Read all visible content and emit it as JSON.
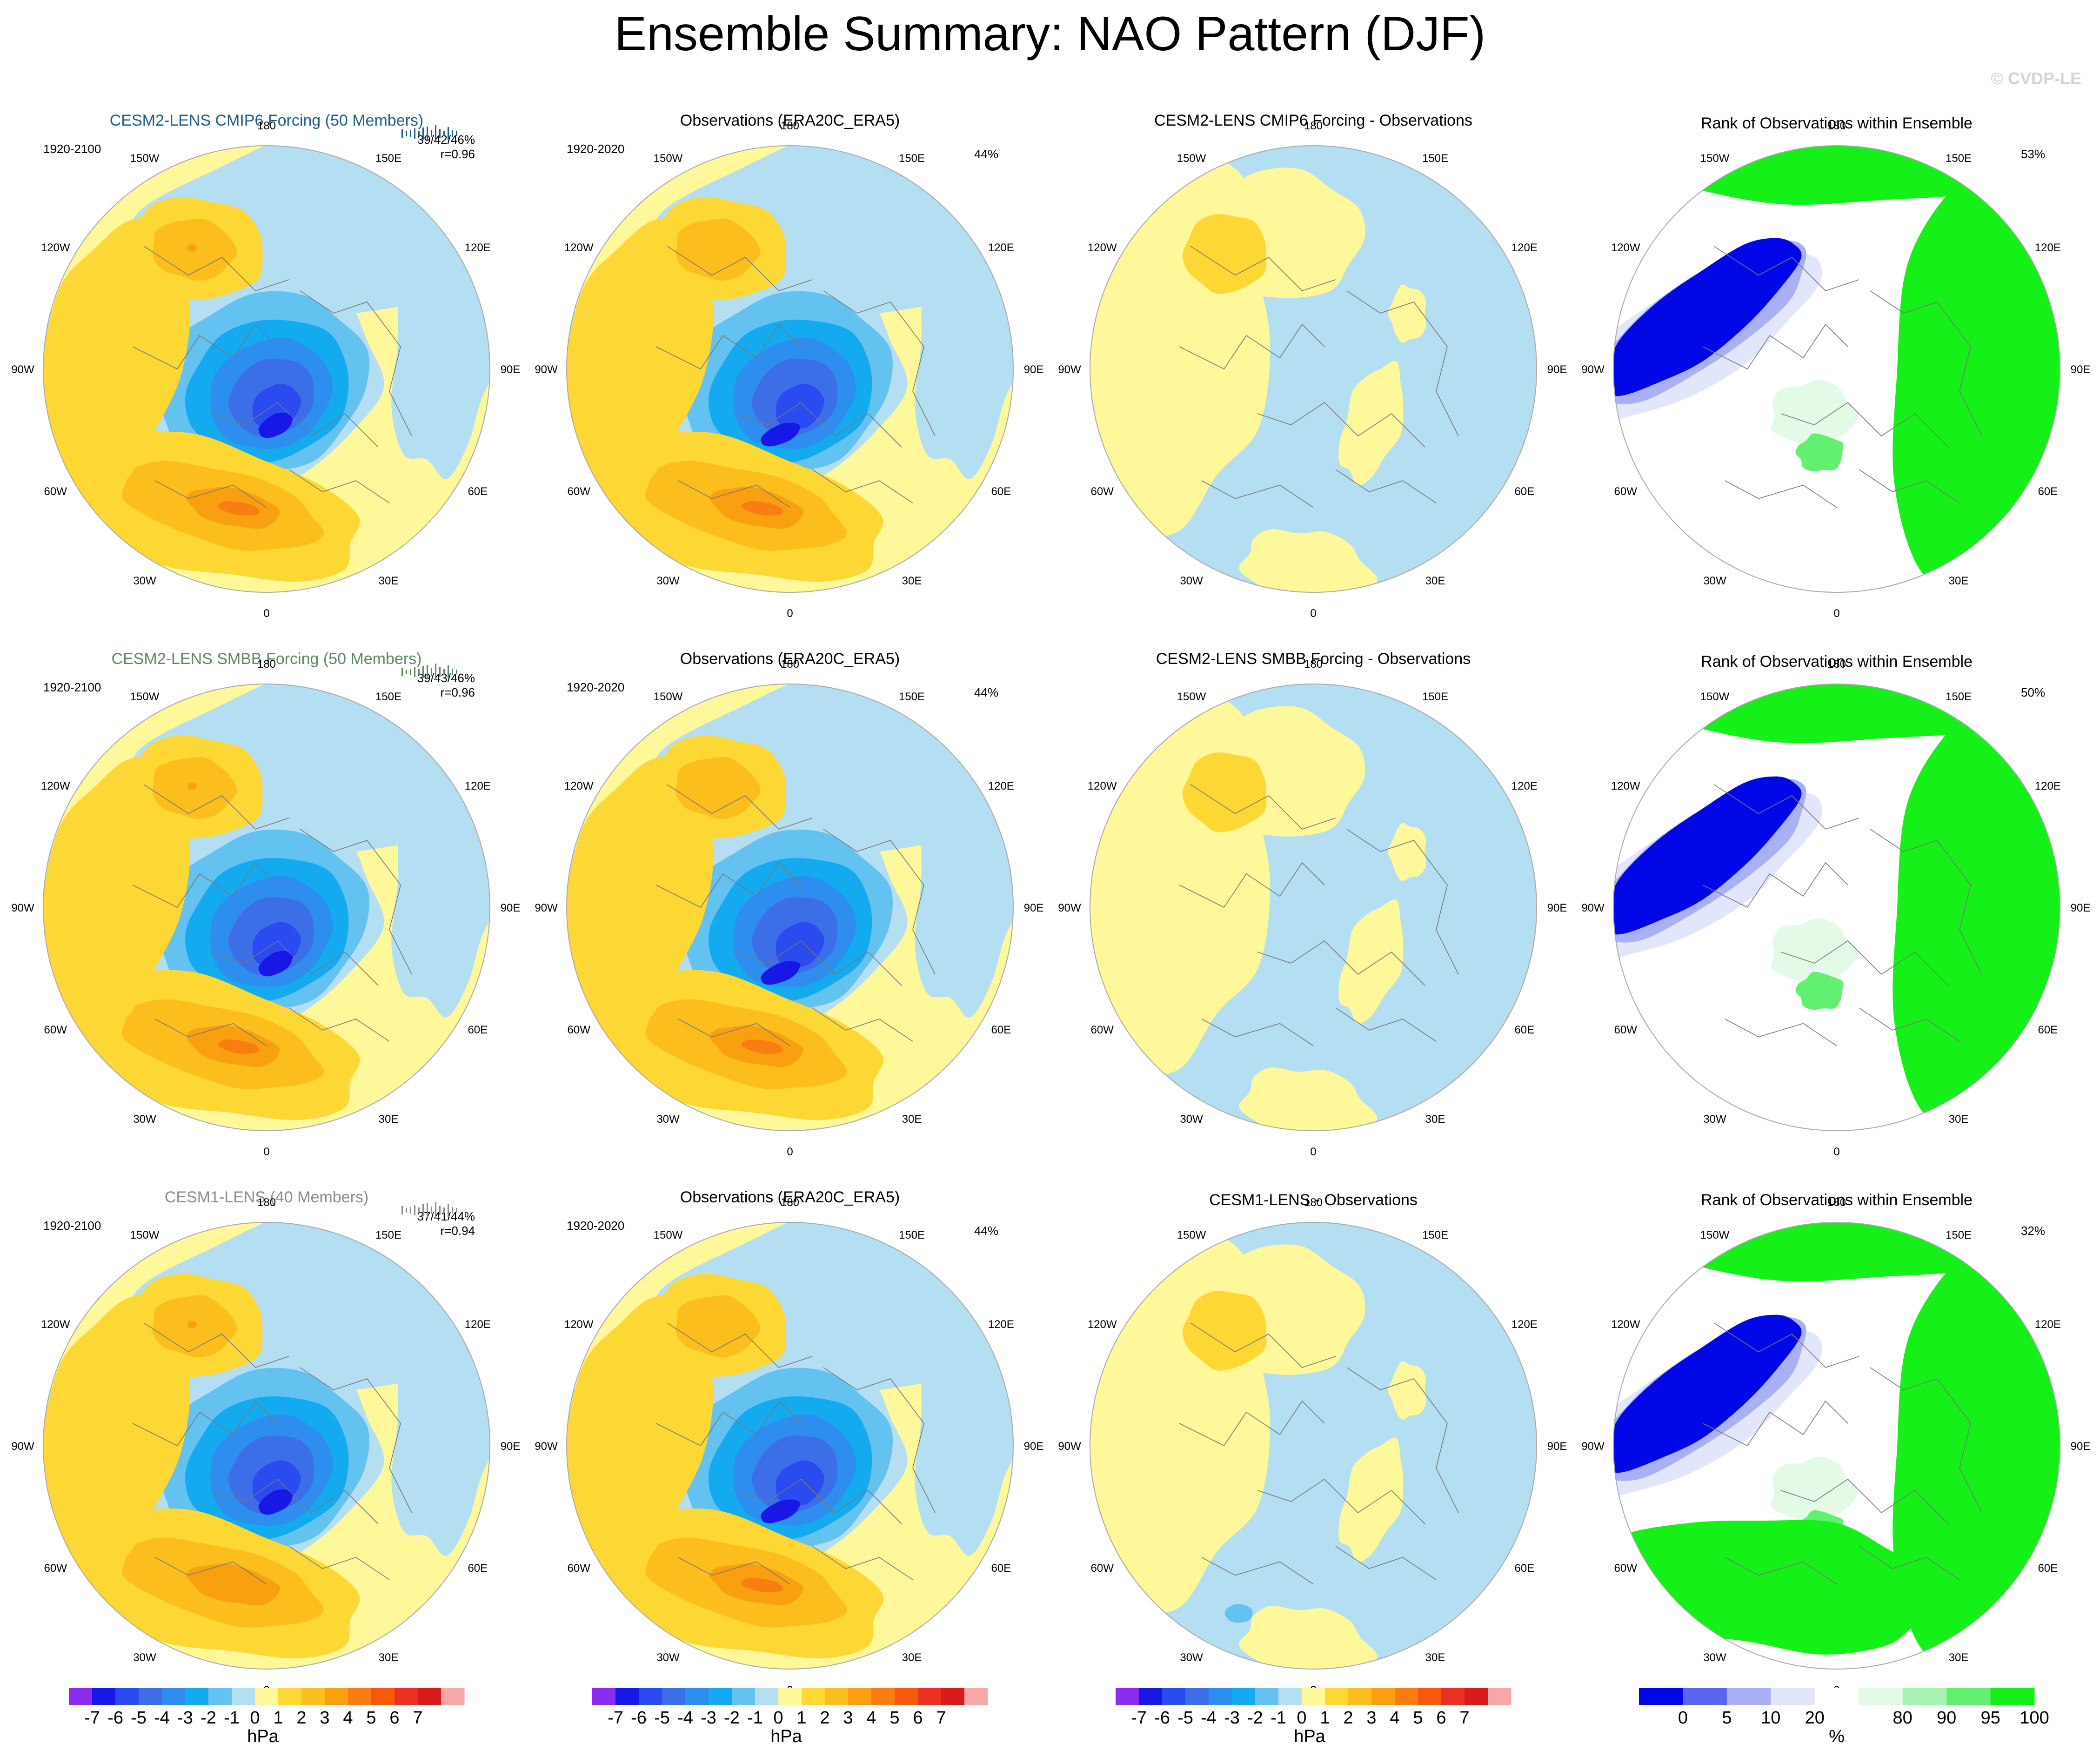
{
  "header": {
    "title": "Ensemble Summary: NAO Pattern (DJF)",
    "watermark": "© CVDP-LE"
  },
  "colors": {
    "model_titles": [
      "#1e5f86",
      "#5e8862",
      "#8c8c8c"
    ],
    "contour_palette": [
      "#8b2bf0",
      "#1818e6",
      "#2a4bf0",
      "#3c6ee8",
      "#2e8ef0",
      "#14aaf0",
      "#64c2f0",
      "#b4def2",
      "#fef89a",
      "#fdd835",
      "#fbbe1c",
      "#f9a010",
      "#f97e12",
      "#f55a0a",
      "#ea3020",
      "#d81c1c",
      "#f6a8a8"
    ],
    "rank_palette": [
      "#0008e8",
      "#5a66f0",
      "#aab0f4",
      "#e2e6fa",
      "#ffffff",
      "#e2fae6",
      "#a8f4b4",
      "#62f070",
      "#14f018"
    ],
    "land_outline": "#777777"
  },
  "labels": {
    "lon": [
      "180",
      "150E",
      "120E",
      "90E",
      "60E",
      "30E",
      "0",
      "30W",
      "60W",
      "90W",
      "120W",
      "150W"
    ],
    "units_hpa": "hPa",
    "units_pct": "%"
  },
  "colorbars": {
    "hpa_ticks": [
      "-7",
      "-6",
      "-5",
      "-4",
      "-3",
      "-2",
      "-1",
      "0",
      "1",
      "2",
      "3",
      "4",
      "5",
      "6",
      "7"
    ],
    "rank_ticks": [
      "0",
      "5",
      "10",
      "20",
      "80",
      "90",
      "95",
      "100"
    ],
    "rank_tick_positions": [
      1,
      2,
      3,
      4,
      6,
      7,
      8,
      9
    ]
  },
  "rows": [
    {
      "model_title": "CESM2-LENS CMIP6 Forcing (50 Members)",
      "model_years": "1920-2100",
      "model_stats": "39/42/46%",
      "model_r": "r=0.96",
      "obs_title": "Observations (ERA20C_ERA5)",
      "obs_years": "1920-2020",
      "obs_pct": "44%",
      "diff_title": "CESM2-LENS CMIP6 Forcing - Observations",
      "rank_title": "Rank of Observations within Ensemble",
      "rank_pct": "53%"
    },
    {
      "model_title": "CESM2-LENS SMBB Forcing (50 Members)",
      "model_years": "1920-2100",
      "model_stats": "39/43/46%",
      "model_r": "r=0.96",
      "obs_title": "Observations (ERA20C_ERA5)",
      "obs_years": "1920-2020",
      "obs_pct": "44%",
      "diff_title": "CESM2-LENS SMBB Forcing - Observations",
      "rank_title": "Rank of Observations within Ensemble",
      "rank_pct": "50%"
    },
    {
      "model_title": "CESM1-LENS (40 Members)",
      "model_years": "1920-2100",
      "model_stats": "37/41/44%",
      "model_r": "r=0.94",
      "obs_title": "Observations (ERA20C_ERA5)",
      "obs_years": "1920-2020",
      "obs_pct": "44%",
      "diff_title": "CESM1-LENS - Observations",
      "rank_title": "Rank of Observations within Ensemble",
      "rank_pct": "32%"
    }
  ],
  "chart_data": [
    {
      "type": "heatmap",
      "projection": "north-polar-stereographic",
      "variable": "NAO sea level pressure pattern (DJF)",
      "units": "hPa",
      "contour_levels": [
        -7,
        -6,
        -5,
        -4,
        -3,
        -2,
        -1,
        0,
        1,
        2,
        3,
        4,
        5,
        6,
        7
      ],
      "panels": [
        {
          "title": "CESM2-LENS CMIP6 Forcing (50 Members)",
          "years": "1920-2100",
          "pct_variance": "39/42/46%",
          "pattern_corr": 0.96,
          "arctic_min_approx": -7,
          "atlantic_max_approx": 5,
          "pacific_max_approx": 3
        },
        {
          "title": "CESM2-LENS SMBB Forcing (50 Members)",
          "years": "1920-2100",
          "pct_variance": "39/43/46%",
          "pattern_corr": 0.96,
          "arctic_min_approx": -7,
          "atlantic_max_approx": 5,
          "pacific_max_approx": 3
        },
        {
          "title": "CESM1-LENS (40 Members)",
          "years": "1920-2100",
          "pct_variance": "37/41/44%",
          "pattern_corr": 0.94,
          "arctic_min_approx": -7,
          "atlantic_max_approx": 4,
          "pacific_max_approx": 3
        }
      ]
    },
    {
      "type": "heatmap",
      "projection": "north-polar-stereographic",
      "title": "Observations (ERA20C_ERA5)",
      "years": "1920-2020",
      "pct_variance": "44%",
      "units": "hPa",
      "arctic_min_approx": -7,
      "atlantic_max_approx": 5
    },
    {
      "type": "heatmap",
      "projection": "north-polar-stereographic",
      "units": "hPa",
      "panels": [
        {
          "title": "CESM2-LENS CMIP6 Forcing - Observations",
          "range_approx": [
            -1,
            2
          ]
        },
        {
          "title": "CESM2-LENS SMBB Forcing - Observations",
          "range_approx": [
            -1,
            2
          ]
        },
        {
          "title": "CESM1-LENS - Observations",
          "range_approx": [
            -2,
            2
          ]
        }
      ]
    },
    {
      "type": "heatmap",
      "projection": "north-polar-stereographic",
      "units": "%",
      "rank_bins": [
        0,
        5,
        10,
        20,
        80,
        90,
        95,
        100
      ],
      "panels": [
        {
          "title": "Rank of Observations within Ensemble",
          "pct_area_outside_10_90": "53%"
        },
        {
          "title": "Rank of Observations within Ensemble",
          "pct_area_outside_10_90": "50%"
        },
        {
          "title": "Rank of Observations within Ensemble",
          "pct_area_outside_10_90": "32%"
        }
      ]
    }
  ]
}
